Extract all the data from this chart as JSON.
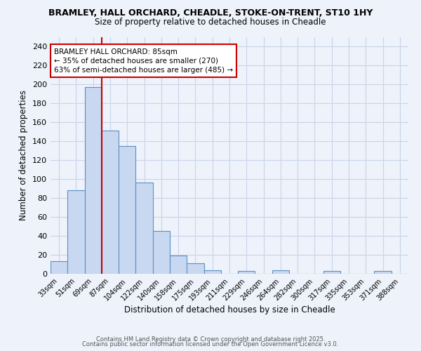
{
  "title1": "BRAMLEY, HALL ORCHARD, CHEADLE, STOKE-ON-TRENT, ST10 1HY",
  "title2": "Size of property relative to detached houses in Cheadle",
  "xlabel": "Distribution of detached houses by size in Cheadle",
  "ylabel": "Number of detached properties",
  "bin_labels": [
    "33sqm",
    "51sqm",
    "69sqm",
    "87sqm",
    "104sqm",
    "122sqm",
    "140sqm",
    "158sqm",
    "175sqm",
    "193sqm",
    "211sqm",
    "229sqm",
    "246sqm",
    "264sqm",
    "282sqm",
    "300sqm",
    "317sqm",
    "335sqm",
    "353sqm",
    "371sqm",
    "388sqm"
  ],
  "bar_values": [
    13,
    88,
    197,
    151,
    135,
    96,
    45,
    19,
    11,
    4,
    0,
    3,
    0,
    4,
    0,
    0,
    3,
    0,
    0,
    3,
    0
  ],
  "bar_color": "#c8d8f0",
  "bar_edge_color": "#5b8fc9",
  "vline_x_index": 3,
  "vline_color": "#cc0000",
  "annotation_text": "BRAMLEY HALL ORCHARD: 85sqm\n← 35% of detached houses are smaller (270)\n63% of semi-detached houses are larger (485) →",
  "annotation_box_color": "white",
  "annotation_box_edge": "#cc0000",
  "ylim": [
    0,
    250
  ],
  "yticks": [
    0,
    20,
    40,
    60,
    80,
    100,
    120,
    140,
    160,
    180,
    200,
    220,
    240
  ],
  "footer1": "Contains HM Land Registry data © Crown copyright and database right 2025.",
  "footer2": "Contains public sector information licensed under the Open Government Licence v3.0.",
  "background_color": "#eef2fa",
  "grid_color": "#c8d4e8"
}
